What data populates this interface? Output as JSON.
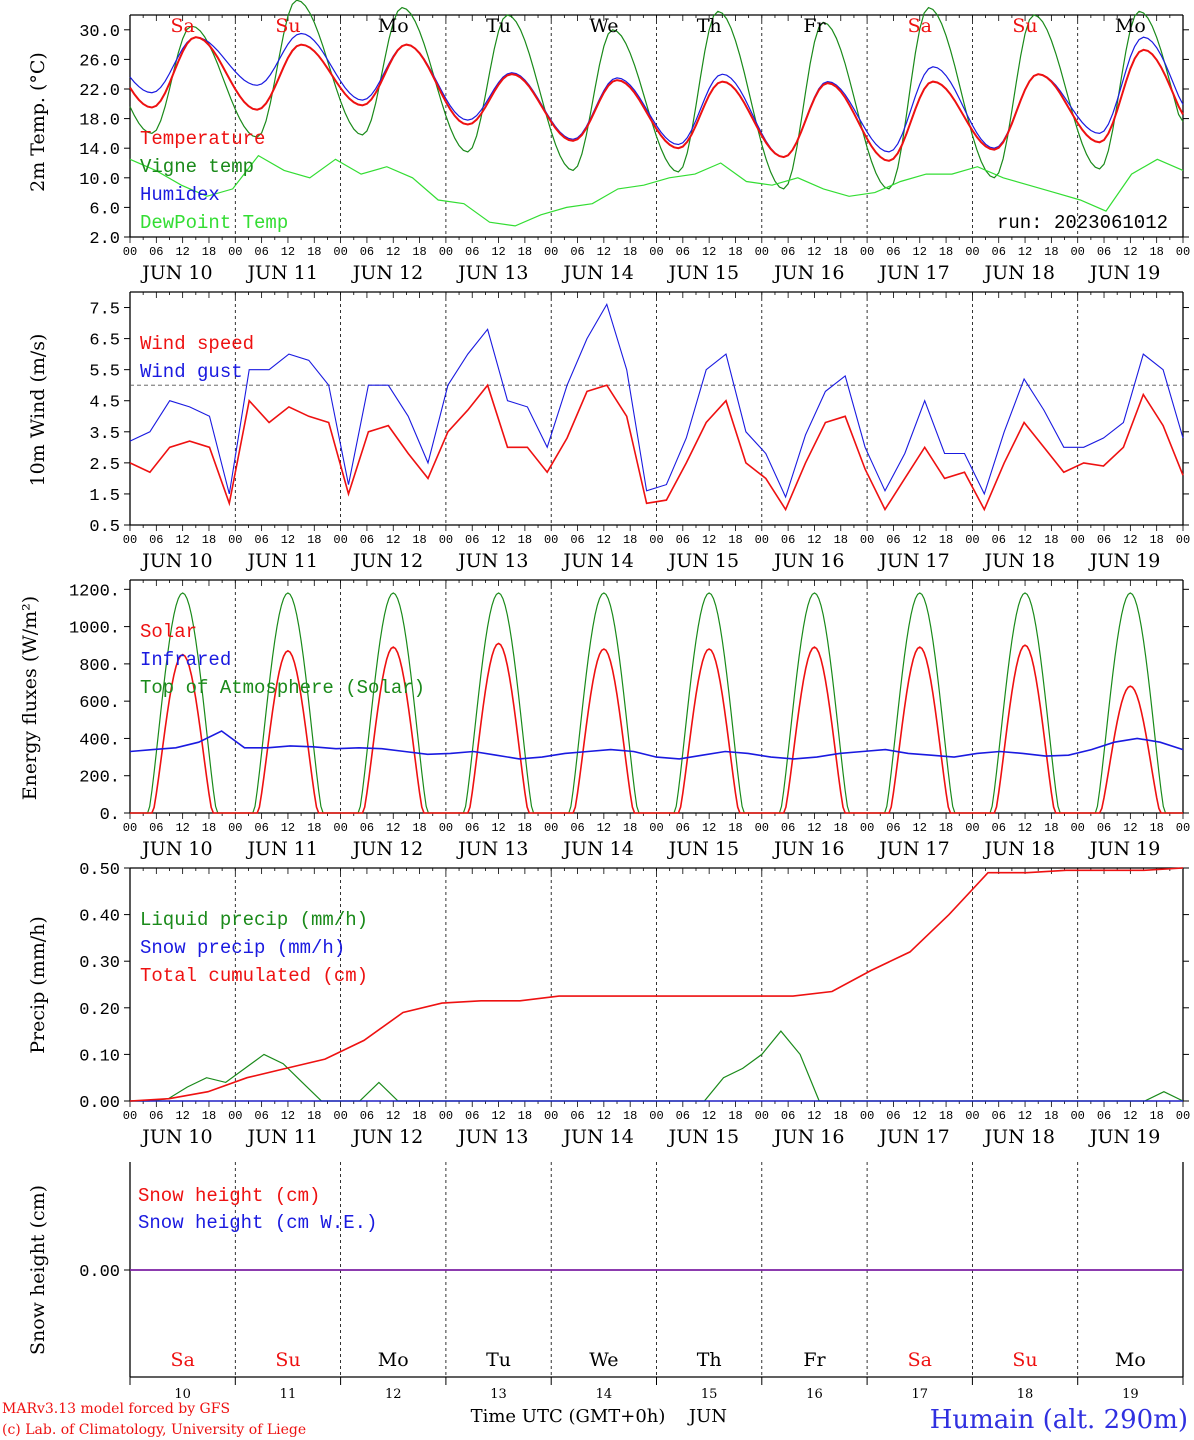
{
  "colors": {
    "red": "#ee1111",
    "green": "#1a8a1a",
    "blue": "#1a1ae0",
    "lightgreen": "#33dd33",
    "purple": "#7b1fa2",
    "title": "#3030e0"
  },
  "x_axis": {
    "hour_ticks": [
      "00",
      "06",
      "12",
      "18"
    ],
    "day_labels": [
      "JUN 10",
      "JUN 11",
      "JUN 12",
      "JUN 13",
      "JUN 14",
      "JUN 15",
      "JUN 16",
      "JUN 17",
      "JUN 18",
      "JUN 19"
    ],
    "weekdays": [
      "Sa",
      "Su",
      "Mo",
      "Tu",
      "We",
      "Th",
      "Fr",
      "Sa",
      "Su",
      "Mo"
    ],
    "weekday_colors": [
      "red",
      "red",
      "black",
      "black",
      "black",
      "black",
      "black",
      "red",
      "red",
      "black"
    ],
    "day_numbers": [
      "10",
      "11",
      "12",
      "13",
      "14",
      "15",
      "16",
      "17",
      "18",
      "19"
    ],
    "title": "Time UTC (GMT+0h)",
    "month": "JUN"
  },
  "footer": {
    "credit1": "MARv3.13 model forced by GFS",
    "credit2": "(c) Lab. of Climatology, University of Liege",
    "station": "Humain (alt. 290m)"
  },
  "chart_data": [
    {
      "type": "line",
      "ylabel": "2m Temp. (°C)",
      "ylim": [
        2,
        32
      ],
      "yticks": [
        "2.0",
        "6.0",
        "10.0",
        "14.0",
        "18.0",
        "22.0",
        "26.0",
        "30.0"
      ],
      "run_label": "run: 2023061012",
      "series": [
        {
          "name": "Temperature",
          "color": "red",
          "min_values": [
            19.5,
            19.2,
            19.8,
            17.2,
            15.0,
            14.0,
            12.8,
            12.3,
            13.8,
            14.8
          ],
          "max_values": [
            29.0,
            28.0,
            28.0,
            24.0,
            23.2,
            23.0,
            22.8,
            23.0,
            24.0,
            27.3
          ]
        },
        {
          "name": "Vigne temp",
          "color": "green",
          "min_values": [
            16.0,
            15.5,
            15.8,
            13.5,
            11.0,
            10.8,
            8.5,
            8.5,
            10.0,
            11.2
          ],
          "max_values": [
            30.5,
            34.0,
            33.0,
            32.0,
            30.0,
            32.5,
            31.0,
            33.0,
            32.0,
            32.5
          ]
        },
        {
          "name": "Humidex",
          "color": "blue",
          "min_values": [
            21.5,
            22.5,
            20.5,
            17.8,
            15.2,
            14.5,
            12.8,
            13.5,
            14.0,
            16.0
          ],
          "max_values": [
            29.0,
            29.5,
            28.0,
            24.2,
            23.5,
            24.0,
            23.0,
            25.0,
            24.0,
            29.0
          ]
        },
        {
          "name": "DewPoint Temp",
          "color": "lightgreen",
          "values": [
            12.5,
            11.0,
            9.0,
            7.5,
            8.5,
            13.0,
            11.0,
            10.0,
            12.5,
            10.5,
            11.5,
            10.0,
            7.0,
            6.5,
            4.0,
            3.5,
            5.0,
            6.0,
            6.5,
            8.5,
            9.0,
            10.0,
            10.5,
            12.0,
            9.5,
            9.0,
            10.0,
            8.5,
            7.5,
            8.0,
            9.5,
            10.5,
            10.5,
            11.5,
            10.0,
            9.0,
            8.0,
            7.0,
            5.5,
            10.5,
            12.5,
            11.0
          ]
        }
      ]
    },
    {
      "type": "line",
      "ylabel": "10m Wind (m/s)",
      "ylim": [
        0.5,
        8.0
      ],
      "yticks": [
        "0.5",
        "1.5",
        "2.5",
        "3.5",
        "4.5",
        "5.5",
        "6.5",
        "7.5"
      ],
      "ref_line": 5.0,
      "series": [
        {
          "name": "Wind speed",
          "color": "red",
          "values": [
            2.5,
            2.2,
            3.0,
            3.2,
            3.0,
            1.2,
            4.5,
            3.8,
            4.3,
            4.0,
            3.8,
            1.5,
            3.5,
            3.7,
            2.8,
            2.0,
            3.5,
            4.2,
            5.0,
            3.0,
            3.0,
            2.2,
            3.3,
            4.8,
            5.0,
            4.0,
            1.2,
            1.3,
            2.5,
            3.8,
            4.5,
            2.5,
            2.0,
            1.0,
            2.5,
            3.8,
            4.0,
            2.3,
            1.0,
            2.0,
            3.0,
            2.0,
            2.2,
            1.0,
            2.5,
            3.8,
            3.0,
            2.2,
            2.5,
            2.4,
            3.0,
            4.7,
            3.7,
            2.1
          ]
        },
        {
          "name": "Wind gust",
          "color": "blue",
          "values": [
            3.2,
            3.5,
            4.5,
            4.3,
            4.0,
            1.5,
            5.5,
            5.5,
            6.0,
            5.8,
            5.0,
            1.8,
            5.0,
            5.0,
            4.0,
            2.5,
            5.0,
            6.0,
            6.8,
            4.5,
            4.3,
            3.0,
            5.0,
            6.5,
            7.6,
            5.5,
            1.6,
            1.8,
            3.3,
            5.5,
            6.0,
            3.5,
            2.8,
            1.4,
            3.4,
            4.8,
            5.3,
            3.0,
            1.6,
            2.8,
            4.5,
            2.8,
            2.8,
            1.5,
            3.5,
            5.2,
            4.2,
            3.0,
            3.0,
            3.3,
            3.8,
            6.0,
            5.5,
            3.3
          ]
        }
      ]
    },
    {
      "type": "line",
      "ylabel": "Energy fluxes (W/m²)",
      "ylim": [
        0,
        1250
      ],
      "yticks": [
        "0.",
        "200.",
        "400.",
        "600.",
        "800.",
        "1000.",
        "1200."
      ],
      "series": [
        {
          "name": "Solar",
          "color": "red",
          "daily_peak": [
            850,
            870,
            890,
            910,
            880,
            880,
            890,
            890,
            900,
            680
          ]
        },
        {
          "name": "Infrared",
          "color": "blue",
          "values": [
            330,
            340,
            350,
            380,
            440,
            350,
            350,
            360,
            355,
            345,
            350,
            345,
            330,
            315,
            320,
            330,
            310,
            290,
            300,
            320,
            330,
            340,
            330,
            300,
            290,
            310,
            330,
            320,
            300,
            290,
            300,
            320,
            330,
            340,
            320,
            310,
            300,
            320,
            330,
            320,
            305,
            310,
            340,
            380,
            400,
            380,
            340
          ]
        },
        {
          "name": "Top of Atmosphere (Solar)",
          "color": "green",
          "daily_peak": [
            1180,
            1180,
            1180,
            1180,
            1180,
            1180,
            1180,
            1180,
            1180,
            1180
          ]
        }
      ]
    },
    {
      "type": "line",
      "ylabel": "Precip (mm/h)",
      "ylim": [
        0,
        0.5
      ],
      "yticks": [
        "0.00",
        "0.10",
        "0.20",
        "0.30",
        "0.40",
        "0.50"
      ],
      "series": [
        {
          "name": "Liquid precip (mm/h)",
          "color": "green",
          "values": [
            0,
            0,
            0.005,
            0.03,
            0.05,
            0.04,
            0.07,
            0.1,
            0.08,
            0.04,
            0,
            0,
            0,
            0.04,
            0,
            0,
            0,
            0,
            0,
            0,
            0,
            0,
            0,
            0,
            0,
            0,
            0,
            0,
            0,
            0,
            0,
            0.05,
            0.07,
            0.1,
            0.15,
            0.1,
            0,
            0,
            0,
            0,
            0,
            0,
            0,
            0,
            0,
            0,
            0,
            0,
            0,
            0,
            0,
            0,
            0,
            0,
            0.02,
            0
          ]
        },
        {
          "name": "Snow precip (mm/h)",
          "color": "blue",
          "values": [
            0,
            0,
            0,
            0,
            0,
            0,
            0,
            0,
            0,
            0
          ]
        },
        {
          "name": "Total cumulated (cm)",
          "color": "red",
          "values": [
            0,
            0.005,
            0.02,
            0.05,
            0.07,
            0.09,
            0.13,
            0.19,
            0.21,
            0.215,
            0.215,
            0.225,
            0.225,
            0.225,
            0.225,
            0.225,
            0.225,
            0.225,
            0.235,
            0.28,
            0.32,
            0.4,
            0.49,
            0.49,
            0.495,
            0.495,
            0.495,
            0.5
          ]
        }
      ]
    },
    {
      "type": "line",
      "ylabel": "Snow height (cm)",
      "zero_label": "0.00",
      "series": [
        {
          "name": "Snow height (cm)",
          "color": "red",
          "values": [
            0,
            0
          ]
        },
        {
          "name": "Snow height (cm W.E.)",
          "color": "blue",
          "values": [
            0,
            0
          ]
        }
      ]
    }
  ]
}
